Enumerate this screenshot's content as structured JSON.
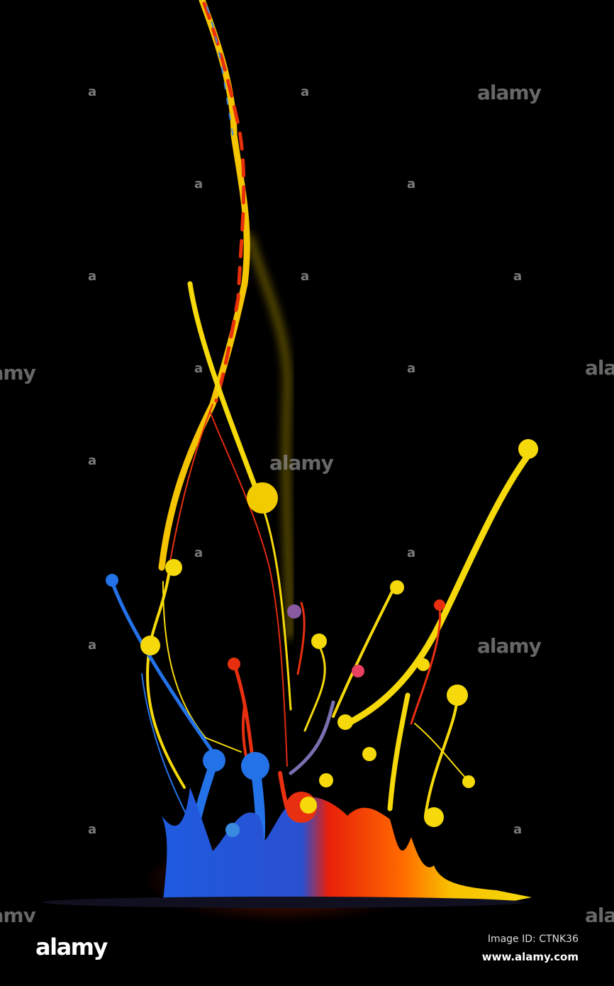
{
  "image": {
    "subject": "paint splash",
    "colors": {
      "yellow": "#f5d90a",
      "red": "#e82a10",
      "blue": "#1f6be6",
      "orange": "#ff8a00",
      "background": "#000000"
    }
  },
  "watermark": {
    "text": "alamy"
  },
  "footer": {
    "logo": "alamy",
    "image_id": "Image ID: CTNK36",
    "website": "www.alamy.com"
  }
}
